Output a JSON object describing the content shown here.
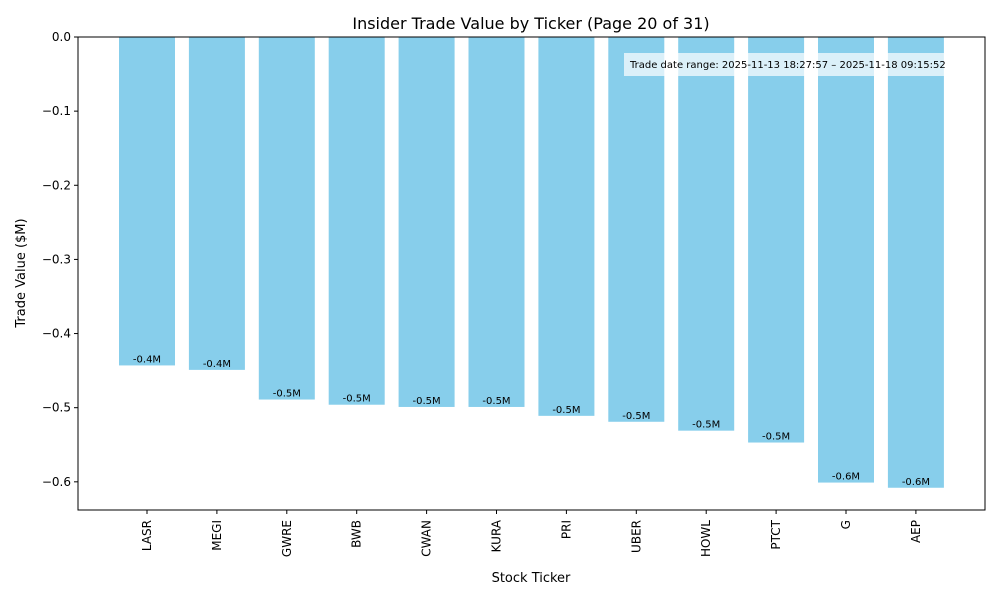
{
  "chart_data": {
    "type": "bar",
    "title": "Insider Trade Value by Ticker (Page 20 of 31)",
    "xlabel": "Stock Ticker",
    "ylabel": "Trade Value ($M)",
    "categories": [
      "LASR",
      "MEGI",
      "GWRE",
      "BWB",
      "CWAN",
      "KURA",
      "PRI",
      "UBER",
      "HOWL",
      "PTCT",
      "G",
      "AEP"
    ],
    "values": [
      -0.443,
      -0.449,
      -0.489,
      -0.496,
      -0.499,
      -0.499,
      -0.511,
      -0.519,
      -0.531,
      -0.547,
      -0.601,
      -0.608
    ],
    "data_labels": [
      "-0.4M",
      "-0.4M",
      "-0.5M",
      "-0.5M",
      "-0.5M",
      "-0.5M",
      "-0.5M",
      "-0.5M",
      "-0.5M",
      "-0.5M",
      "-0.6M",
      "-0.6M"
    ],
    "ylim": [
      -0.638,
      0.0
    ],
    "yticks": [
      0.0,
      -0.1,
      -0.2,
      -0.3,
      -0.4,
      -0.5,
      -0.6
    ],
    "ytick_labels": [
      "0.0",
      "−0.1",
      "−0.2",
      "−0.3",
      "−0.4",
      "−0.5",
      "−0.6"
    ],
    "bar_color": "#87CEEB",
    "annotation": "Trade date range: 2025-11-13 18:27:57 – 2025-11-18 09:15:52",
    "grid": false,
    "legend": "none"
  }
}
